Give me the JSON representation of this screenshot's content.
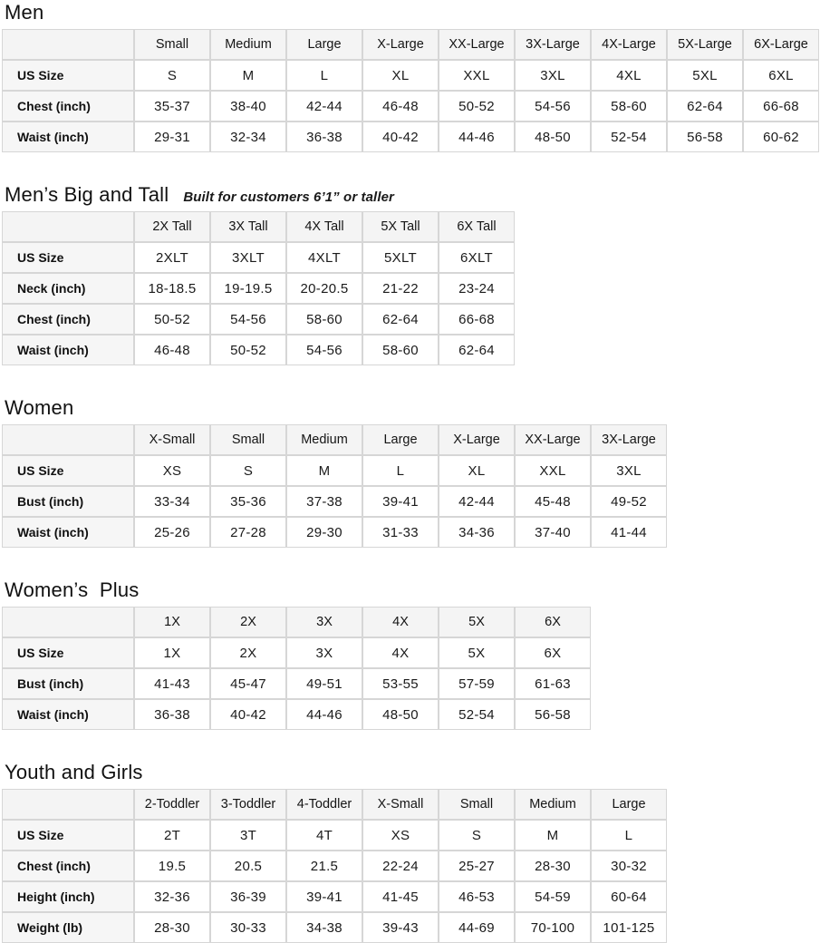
{
  "sections": [
    {
      "id": "men",
      "title": "Men",
      "subtitle": "",
      "columns": [
        "",
        "Small",
        "Medium",
        "Large",
        "X-Large",
        "XX-Large",
        "3X-Large",
        "4X-Large",
        "5X-Large",
        "6X-Large"
      ],
      "rows": [
        {
          "label": "US Size",
          "values": [
            "S",
            "M",
            "L",
            "XL",
            "XXL",
            "3XL",
            "4XL",
            "5XL",
            "6XL"
          ]
        },
        {
          "label": "Chest (inch)",
          "values": [
            "35-37",
            "38-40",
            "42-44",
            "46-48",
            "50-52",
            "54-56",
            "58-60",
            "62-64",
            "66-68"
          ]
        },
        {
          "label": "Waist (inch)",
          "values": [
            "29-31",
            "32-34",
            "36-38",
            "40-42",
            "44-46",
            "48-50",
            "52-54",
            "56-58",
            "60-62"
          ]
        }
      ]
    },
    {
      "id": "mens-big-and-tall",
      "title": "Men’s Big and Tall",
      "subtitle": "Built for customers 6’1” or taller",
      "columns": [
        "",
        "2X Tall",
        "3X Tall",
        "4X Tall",
        "5X Tall",
        "6X Tall"
      ],
      "rows": [
        {
          "label": "US Size",
          "values": [
            "2XLT",
            "3XLT",
            "4XLT",
            "5XLT",
            "6XLT"
          ]
        },
        {
          "label": "Neck (inch)",
          "values": [
            "18-18.5",
            "19-19.5",
            "20-20.5",
            "21-22",
            "23-24"
          ]
        },
        {
          "label": "Chest (inch)",
          "values": [
            "50-52",
            "54-56",
            "58-60",
            "62-64",
            "66-68"
          ]
        },
        {
          "label": "Waist (inch)",
          "values": [
            "46-48",
            "50-52",
            "54-56",
            "58-60",
            "62-64"
          ]
        }
      ]
    },
    {
      "id": "women",
      "title": "Women",
      "subtitle": "",
      "columns": [
        "",
        "X-Small",
        "Small",
        "Medium",
        "Large",
        "X-Large",
        "XX-Large",
        "3X-Large"
      ],
      "rows": [
        {
          "label": "US Size",
          "values": [
            "XS",
            "S",
            "M",
            "L",
            "XL",
            "XXL",
            "3XL"
          ]
        },
        {
          "label": "Bust (inch)",
          "values": [
            "33-34",
            "35-36",
            "37-38",
            "39-41",
            "42-44",
            "45-48",
            "49-52"
          ]
        },
        {
          "label": "Waist (inch)",
          "values": [
            "25-26",
            "27-28",
            "29-30",
            "31-33",
            "34-36",
            "37-40",
            "41-44"
          ]
        }
      ]
    },
    {
      "id": "womens-plus",
      "title": "Women’s  Plus",
      "subtitle": "",
      "columns": [
        "",
        "1X",
        "2X",
        "3X",
        "4X",
        "5X",
        "6X"
      ],
      "rows": [
        {
          "label": "US Size",
          "values": [
            "1X",
            "2X",
            "3X",
            "4X",
            "5X",
            "6X"
          ]
        },
        {
          "label": "Bust (inch)",
          "values": [
            "41-43",
            "45-47",
            "49-51",
            "53-55",
            "57-59",
            "61-63"
          ]
        },
        {
          "label": "Waist (inch)",
          "values": [
            "36-38",
            "40-42",
            "44-46",
            "48-50",
            "52-54",
            "56-58"
          ]
        }
      ]
    },
    {
      "id": "youth-and-girls",
      "title": "Youth and Girls",
      "subtitle": "",
      "columns": [
        "",
        "2-Toddler",
        "3-Toddler",
        "4-Toddler",
        "X-Small",
        "Small",
        "Medium",
        "Large"
      ],
      "rows": [
        {
          "label": "US Size",
          "values": [
            "2T",
            "3T",
            "4T",
            "XS",
            "S",
            "M",
            "L"
          ]
        },
        {
          "label": "Chest (inch)",
          "values": [
            "19.5",
            "20.5",
            "21.5",
            "22-24",
            "25-27",
            "28-30",
            "30-32"
          ]
        },
        {
          "label": "Height (inch)",
          "values": [
            "32-36",
            "36-39",
            "39-41",
            "41-45",
            "46-53",
            "54-59",
            "60-64"
          ]
        },
        {
          "label": "Weight (lb)",
          "values": [
            "28-30",
            "30-33",
            "34-38",
            "39-43",
            "44-69",
            "70-100",
            "101-125"
          ]
        }
      ]
    }
  ],
  "style": {
    "border_color": "#d6d6d6",
    "header_bg": "#f4f4f4",
    "label_bg": "#f6f6f6",
    "text_color": "#0f1111"
  }
}
